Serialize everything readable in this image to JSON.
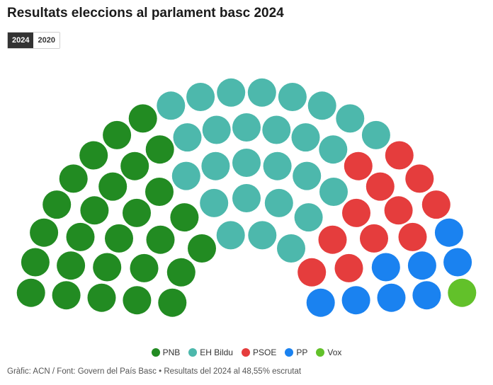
{
  "title": "Resultats eleccions al parlament basc 2024",
  "year_tabs": [
    {
      "label": "2024",
      "active": true
    },
    {
      "label": "2020",
      "active": false
    }
  ],
  "chart_data": {
    "type": "parliament",
    "total_seats": 75,
    "series": [
      {
        "name": "PNB",
        "seats": 27,
        "color": "#228b22"
      },
      {
        "name": "EH Bildu",
        "seats": 27,
        "color": "#4db8ac"
      },
      {
        "name": "PSOE",
        "seats": 12,
        "color": "#e53d3d"
      },
      {
        "name": "PP",
        "seats": 8,
        "color": "#1a82f0"
      },
      {
        "name": "Vox",
        "seats": 1,
        "color": "#62c12a"
      }
    ]
  },
  "footer": {
    "source": "Gràfic: ACN / Font: Govern del País Basc • Resultats del 2024 al 48,55% escrutat"
  }
}
